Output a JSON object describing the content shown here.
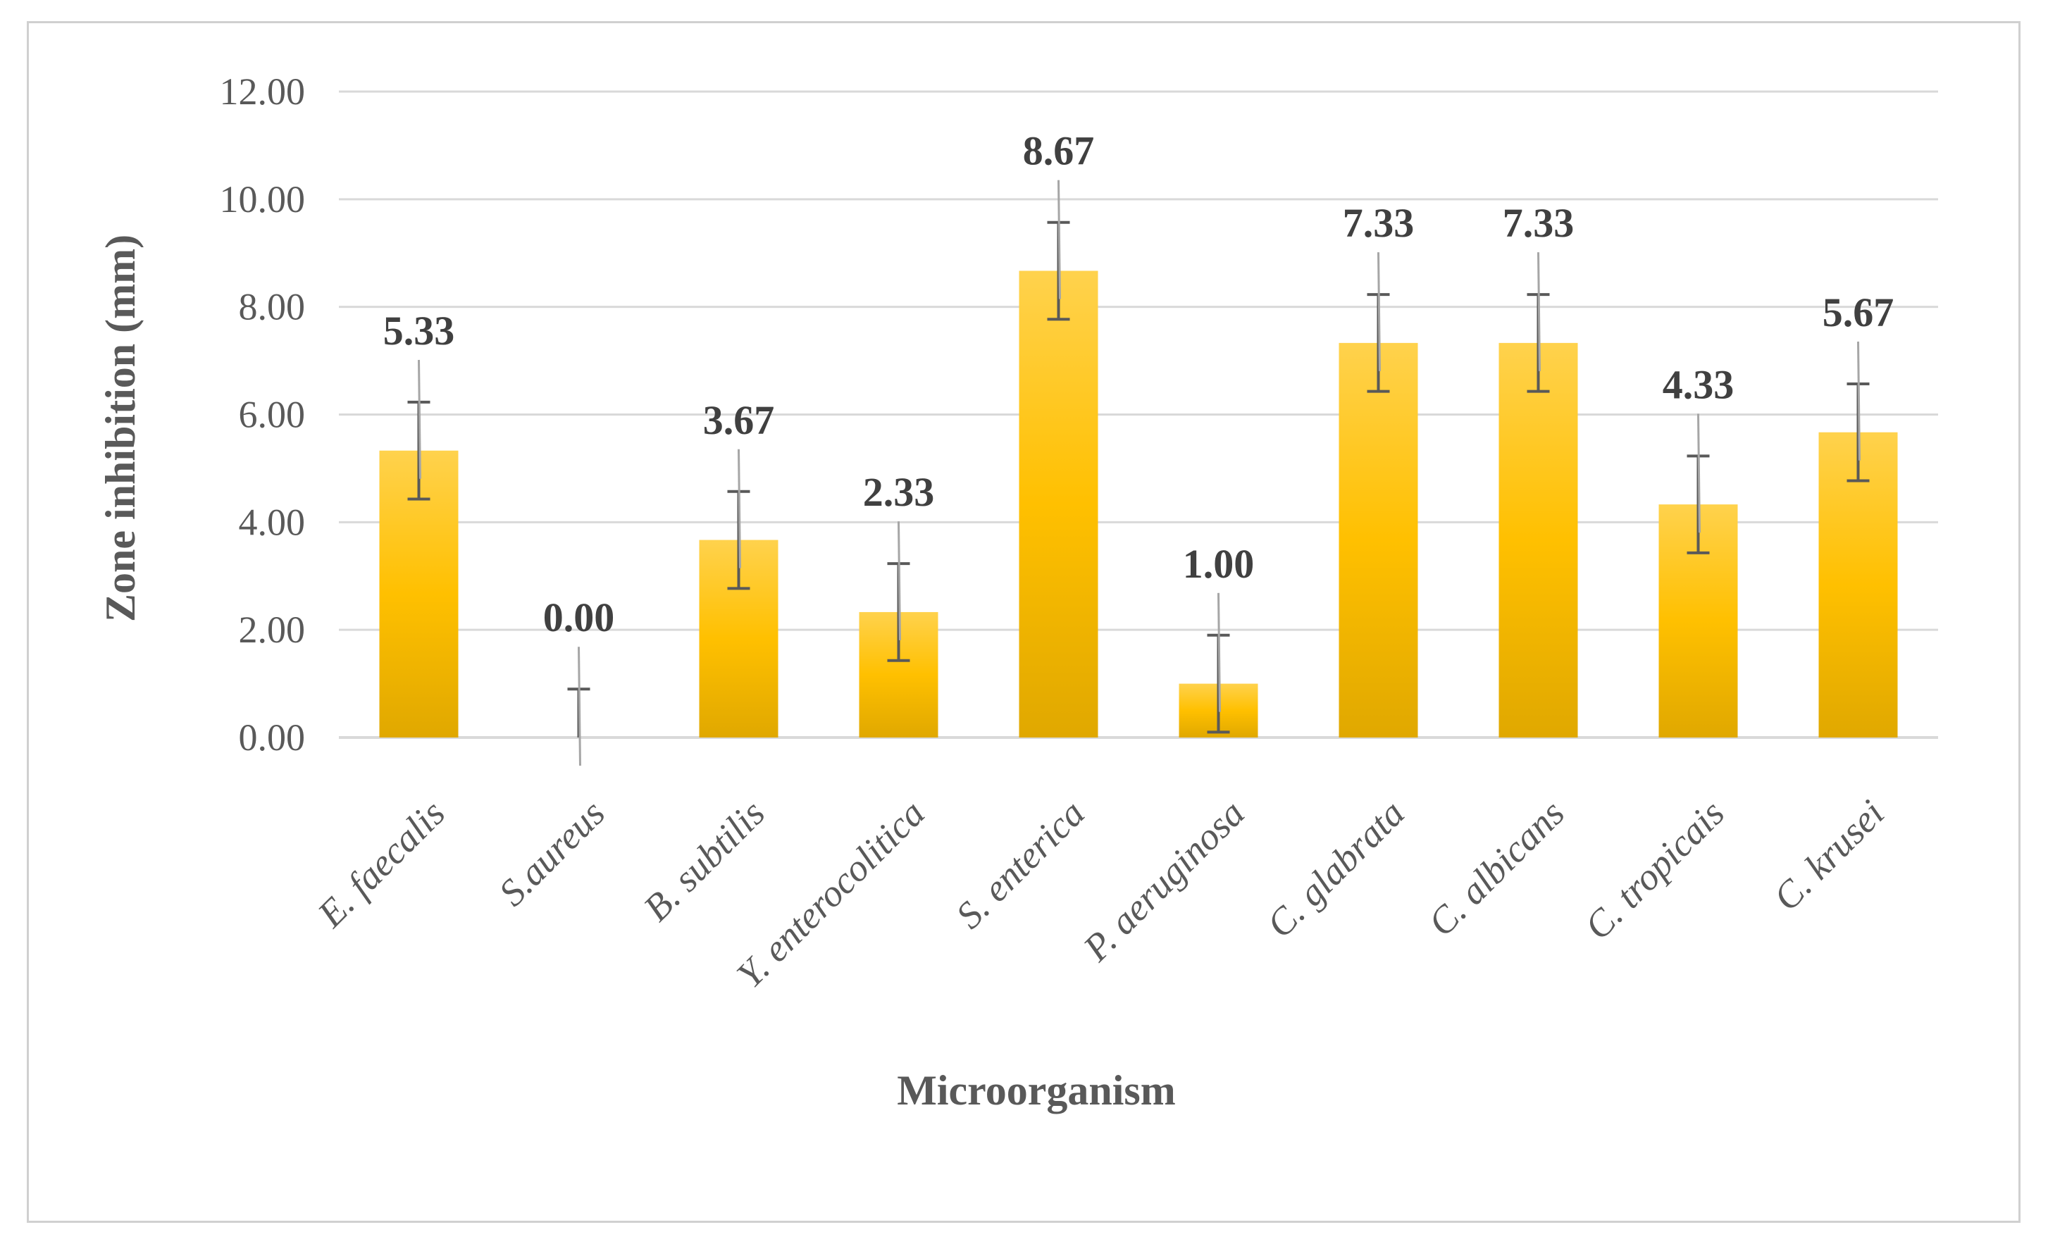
{
  "chart_data": {
    "type": "bar",
    "title": "",
    "xlabel": "Microorganism",
    "ylabel": "Zone inhibition (mm)",
    "ylim": [
      0,
      12
    ],
    "ytick_step": 2,
    "ytick_labels": [
      "0.00",
      "2.00",
      "4.00",
      "6.00",
      "8.00",
      "10.00",
      "12.00"
    ],
    "grid": true,
    "legend": "none",
    "categories": [
      "E. faecalis",
      "S.aureus",
      "B. subtilis",
      "Y. enterocolitica",
      "S. enterica",
      "P. aeruginosa",
      "C. glabrata",
      "C. albicans",
      "C. tropicais",
      "C. krusei"
    ],
    "values": [
      5.33,
      0.0,
      3.67,
      2.33,
      8.67,
      1.0,
      7.33,
      7.33,
      4.33,
      5.67
    ],
    "data_labels": [
      "5.33",
      "0.00",
      "3.67",
      "2.33",
      "8.67",
      "1.00",
      "7.33",
      "7.33",
      "4.33",
      "5.67"
    ],
    "errors": [
      0.9,
      0.9,
      0.9,
      0.9,
      0.9,
      0.9,
      0.9,
      0.9,
      0.9,
      0.9
    ],
    "colors": {
      "bar_top": "#ffd24d",
      "bar_mid": "#ffc000",
      "bar_bottom": "#e0a800",
      "error_bar": "#595959",
      "grid": "#d9d9d9"
    }
  }
}
